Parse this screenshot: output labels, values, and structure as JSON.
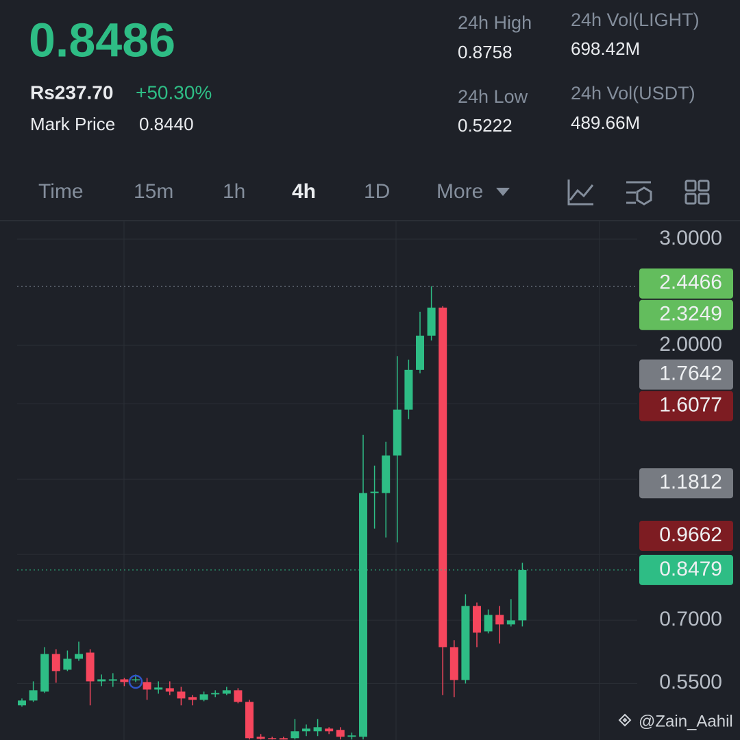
{
  "header": {
    "price": "0.8486",
    "fiat": "Rs237.70",
    "change": "+50.30%",
    "mark_label": "Mark Price",
    "mark_price": "0.8440"
  },
  "stats": [
    {
      "label": "24h High",
      "value": "0.8758"
    },
    {
      "label": "24h Vol(LIGHT)",
      "value": "698.42M"
    },
    {
      "label": "24h Low",
      "value": "0.5222"
    },
    {
      "label": "24h Vol(USDT)",
      "value": "489.66M"
    }
  ],
  "tabs": [
    "Time",
    "15m",
    "1h",
    "4h",
    "1D",
    "More"
  ],
  "active_tab_index": 3,
  "chart_data": {
    "type": "candlestick",
    "log_scale": true,
    "grid": true,
    "up_color": "#2ebd85",
    "down_color": "#f6465d",
    "ylim": [
      0.443,
      3.22
    ],
    "yticks": [
      {
        "value": 3,
        "label": "3.0000"
      },
      {
        "value": 2,
        "label": "2.0000"
      },
      {
        "value": 0.7,
        "label": "0.7000"
      },
      {
        "value": 0.55,
        "label": "0.5500"
      }
    ],
    "ygrid": [
      1.6,
      1.2,
      0.9
    ],
    "open": [
      0.5058,
      0.5151,
      0.5329,
      0.6153,
      0.5794,
      0.6041,
      0.6185,
      0.5542,
      0.5556,
      0.5585,
      0.5571,
      0.5527,
      0.5371,
      0.5399,
      0.5329,
      0.5219,
      0.5164,
      0.5274,
      0.5287,
      0.5357,
      0.5124,
      0.4485,
      0.4461,
      0.4461,
      0.4461,
      0.458,
      0.458,
      0.4627,
      0.4604,
      0.4485,
      0.4485,
      1.1376,
      1.1376,
      1.3134,
      1.5648,
      1.821,
      2.0754,
      2.31,
      0.6316,
      0.5571,
      0.7392,
      0.6708,
      0.7143,
      0.6888,
      0.6996
    ],
    "high": [
      0.5192,
      0.5542,
      0.6316,
      0.6266,
      0.6234,
      0.6449,
      0.6266,
      0.5689,
      0.5718,
      0.5615,
      0.5689,
      0.5615,
      0.5542,
      0.5542,
      0.5427,
      0.526,
      0.5329,
      0.5357,
      0.5427,
      0.5399,
      0.5164,
      0.4532,
      0.4485,
      0.4485,
      0.48,
      0.47,
      0.48,
      0.4652,
      0.4652,
      0.4556,
      1.4205,
      1.263,
      1.3839,
      1.9188,
      1.8939,
      2.274,
      2.505,
      2.3223,
      0.6486,
      0.7728,
      0.7488,
      0.7293,
      0.7392,
      0.7587,
      0.8715
    ],
    "low": [
      0.5031,
      0.5124,
      0.5301,
      0.5513,
      0.5764,
      0.5994,
      0.5058,
      0.5442,
      0.5427,
      0.5442,
      0.5527,
      0.5164,
      0.5287,
      0.526,
      0.5058,
      0.5058,
      0.5137,
      0.5219,
      0.526,
      0.5097,
      0.4438,
      0.4438,
      0.4438,
      0.4438,
      0.4438,
      0.4497,
      0.4497,
      0.4532,
      0.4438,
      0.4438,
      0.4438,
      0.993,
      0.96,
      0.9426,
      1.5084,
      1.7973,
      2.0376,
      0.526,
      0.5219,
      0.5498,
      0.6316,
      0.6657,
      0.6402,
      0.6834,
      0.6834
    ],
    "close": [
      0.5151,
      0.5357,
      0.6153,
      0.5764,
      0.6041,
      0.6153,
      0.5542,
      0.5585,
      0.5585,
      0.5527,
      0.5585,
      0.5371,
      0.5413,
      0.5329,
      0.5192,
      0.5164,
      0.5274,
      0.5301,
      0.5357,
      0.5124,
      0.4461,
      0.445,
      0.445,
      0.4438,
      0.458,
      0.4627,
      0.4652,
      0.458,
      0.4485,
      0.4508,
      1.1376,
      1.1436,
      1.3134,
      1.5648,
      1.821,
      2.0754,
      2.31,
      0.6316,
      0.5571,
      0.7392,
      0.6675,
      0.7143,
      0.6888,
      0.6996,
      0.8479
    ],
    "price_tags": [
      {
        "value": 2.4466,
        "color": "#63bd5d"
      },
      {
        "value": 2.3249,
        "color": "#63bd5d"
      },
      {
        "value": 1.7642,
        "color": "#777b82"
      },
      {
        "value": 1.6077,
        "color": "#7d1c22"
      },
      {
        "value": 1.1812,
        "color": "#777b82"
      },
      {
        "value": 0.9662,
        "color": "#7d1c22"
      },
      {
        "value": 0.8479,
        "color": "#2ebd85"
      }
    ]
  },
  "watermark": "@Zain_Aahil"
}
